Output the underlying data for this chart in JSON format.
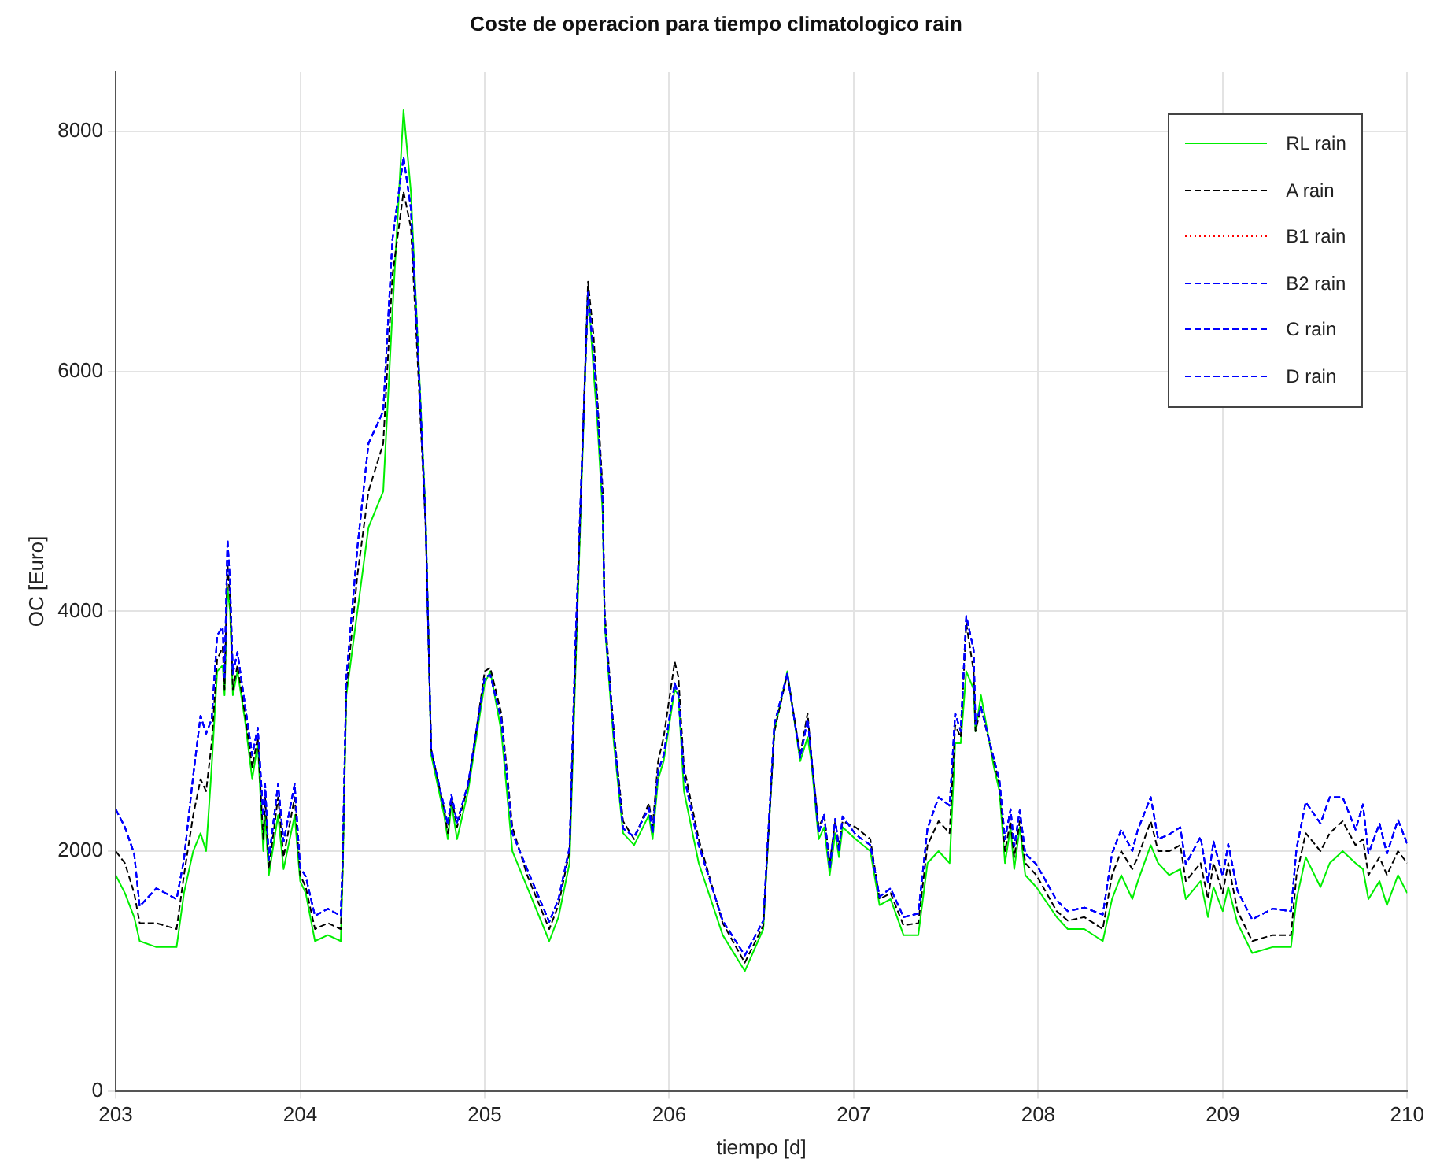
{
  "chart_data": {
    "type": "line",
    "title": "Coste de operacion para tiempo climatologico rain",
    "xlabel": "tiempo [d]",
    "ylabel": "OC [Euro]",
    "x": [
      203.0,
      203.05,
      203.1,
      203.13,
      203.22,
      203.33,
      203.37,
      203.42,
      203.46,
      203.49,
      203.52,
      203.55,
      203.58,
      203.59,
      203.606,
      203.62,
      203.635,
      203.66,
      203.7,
      203.74,
      203.77,
      203.8,
      203.81,
      203.83,
      203.88,
      203.91,
      203.97,
      204.0,
      204.03,
      204.08,
      204.15,
      204.22,
      204.23,
      204.25,
      204.31,
      204.37,
      204.45,
      204.5,
      204.56,
      204.6,
      204.63,
      204.68,
      204.71,
      204.78,
      204.8,
      204.82,
      204.85,
      204.91,
      204.94,
      205.0,
      205.03,
      205.09,
      205.15,
      205.23,
      205.35,
      205.4,
      205.46,
      205.49,
      205.56,
      205.59,
      205.61,
      205.64,
      205.65,
      205.7,
      205.75,
      205.81,
      205.89,
      205.91,
      205.94,
      205.97,
      206.03,
      206.05,
      206.08,
      206.16,
      206.29,
      206.41,
      206.51,
      206.54,
      206.57,
      206.64,
      206.71,
      206.75,
      206.77,
      206.81,
      206.84,
      206.87,
      206.9,
      206.92,
      206.94,
      207.01,
      207.09,
      207.14,
      207.2,
      207.27,
      207.35,
      207.4,
      207.46,
      207.52,
      207.55,
      207.58,
      207.61,
      207.65,
      207.66,
      207.69,
      207.76,
      207.79,
      207.82,
      207.85,
      207.87,
      207.9,
      207.93,
      207.99,
      208.1,
      208.16,
      208.25,
      208.35,
      208.4,
      208.45,
      208.51,
      208.54,
      208.61,
      208.65,
      208.71,
      208.77,
      208.8,
      208.88,
      208.92,
      208.95,
      209.0,
      209.03,
      209.08,
      209.16,
      209.27,
      209.37,
      209.4,
      209.45,
      209.53,
      209.58,
      209.65,
      209.72,
      209.76,
      209.79,
      209.85,
      209.89,
      209.95,
      210.0
    ],
    "series": [
      {
        "name": "RL rain",
        "color": "#00ee00",
        "line_style": "solid",
        "values": [
          1800,
          1650,
          1450,
          1250,
          1200,
          1200,
          1650,
          2000,
          2150,
          2000,
          2700,
          3500,
          3550,
          3300,
          4200,
          4000,
          3300,
          3500,
          3100,
          2600,
          2900,
          2000,
          2300,
          1800,
          2300,
          1850,
          2300,
          1750,
          1650,
          1250,
          1300,
          1250,
          1800,
          3300,
          4000,
          4700,
          5000,
          6500,
          8180,
          7500,
          6500,
          4800,
          2800,
          2300,
          2100,
          2400,
          2100,
          2500,
          2800,
          3400,
          3500,
          3000,
          2000,
          1700,
          1250,
          1450,
          1900,
          3400,
          6700,
          6000,
          5600,
          4800,
          3900,
          2900,
          2150,
          2050,
          2300,
          2100,
          2600,
          2750,
          3350,
          3300,
          2500,
          1900,
          1300,
          1000,
          1350,
          2200,
          3000,
          3500,
          2750,
          2950,
          2750,
          2100,
          2200,
          1800,
          2150,
          1950,
          2200,
          2100,
          2000,
          1550,
          1600,
          1300,
          1300,
          1900,
          2000,
          1900,
          2900,
          2900,
          3500,
          3350,
          3000,
          3300,
          2700,
          2500,
          1900,
          2200,
          1850,
          2200,
          1800,
          1700,
          1450,
          1350,
          1350,
          1250,
          1600,
          1800,
          1600,
          1750,
          2050,
          1900,
          1800,
          1850,
          1600,
          1750,
          1450,
          1700,
          1500,
          1700,
          1400,
          1150,
          1200,
          1200,
          1600,
          1950,
          1700,
          1900,
          2000,
          1900,
          1850,
          1600,
          1750,
          1550,
          1800,
          1650
        ]
      },
      {
        "name": "A rain",
        "color": "#000000",
        "line_style": "dashed",
        "values": [
          2000,
          1900,
          1650,
          1400,
          1400,
          1350,
          1800,
          2300,
          2600,
          2500,
          2900,
          3600,
          3700,
          3350,
          4400,
          4100,
          3350,
          3550,
          3150,
          2700,
          2950,
          2100,
          2450,
          1850,
          2450,
          1950,
          2450,
          1800,
          1700,
          1350,
          1400,
          1350,
          1850,
          3350,
          4300,
          5000,
          5400,
          6800,
          7500,
          7200,
          6300,
          4700,
          2850,
          2350,
          2150,
          2450,
          2200,
          2550,
          2850,
          3500,
          3530,
          3150,
          2200,
          1800,
          1350,
          1550,
          2000,
          3500,
          6750,
          6300,
          5800,
          5000,
          4000,
          3000,
          2250,
          2100,
          2400,
          2200,
          2750,
          2950,
          3580,
          3450,
          2700,
          2100,
          1400,
          1070,
          1380,
          2200,
          3000,
          3480,
          2800,
          3150,
          2800,
          2200,
          2300,
          1900,
          2250,
          2050,
          2250,
          2200,
          2100,
          1600,
          1650,
          1380,
          1400,
          2050,
          2250,
          2150,
          3050,
          2950,
          3900,
          3500,
          3000,
          3200,
          2750,
          2550,
          2000,
          2250,
          1950,
          2250,
          1900,
          1800,
          1500,
          1420,
          1450,
          1350,
          1800,
          2000,
          1850,
          1950,
          2250,
          2000,
          2000,
          2050,
          1750,
          1900,
          1600,
          1900,
          1650,
          1900,
          1500,
          1250,
          1300,
          1300,
          1800,
          2150,
          2000,
          2150,
          2250,
          2050,
          2100,
          1800,
          1950,
          1800,
          2000,
          1900
        ]
      },
      {
        "name": "B1 rain",
        "color": "#ff0000",
        "line_style": "dotted",
        "values": [
          null,
          null,
          null,
          null,
          null,
          null,
          null,
          null,
          null,
          null,
          null,
          null,
          null,
          null,
          null,
          null,
          null,
          null,
          null,
          null,
          null,
          null,
          null,
          null,
          null,
          null,
          null,
          null,
          null,
          null,
          null,
          null,
          null,
          null,
          null,
          null,
          null,
          null,
          null,
          null,
          null,
          null,
          null,
          null,
          null,
          null,
          null,
          null,
          null,
          null,
          null,
          null,
          null,
          null,
          null,
          null,
          null,
          null,
          null,
          null,
          null,
          null,
          null,
          null,
          null,
          null,
          null,
          null,
          null,
          null,
          null,
          null,
          null,
          null,
          null,
          null,
          null,
          null,
          null,
          null,
          null,
          null,
          null,
          null,
          null,
          null,
          null,
          null,
          null,
          null,
          null,
          null,
          null,
          null,
          null,
          null,
          null,
          null,
          null,
          null,
          null,
          null,
          null,
          null,
          null,
          null,
          null,
          null,
          null,
          null,
          null,
          null,
          null,
          null,
          null,
          null,
          null,
          null,
          null,
          null,
          null,
          null,
          null,
          null,
          null,
          null,
          null,
          null,
          null,
          null,
          null,
          null,
          null,
          null,
          null,
          null,
          null,
          null,
          null,
          null,
          null,
          null,
          null,
          null,
          null,
          null
        ]
      },
      {
        "name": "B2 rain",
        "color": "#0000ff",
        "line_style": "dashed",
        "values": [
          2350,
          2200,
          1980,
          1540,
          1690,
          1600,
          1930,
          2630,
          3130,
          2980,
          3100,
          3800,
          3870,
          3450,
          4600,
          4240,
          3480,
          3660,
          3230,
          2800,
          3030,
          2290,
          2560,
          1930,
          2560,
          2080,
          2560,
          1860,
          1790,
          1460,
          1520,
          1460,
          1930,
          3450,
          4530,
          5400,
          5670,
          7100,
          7790,
          7360,
          6450,
          4750,
          2840,
          2370,
          2220,
          2470,
          2240,
          2560,
          2860,
          3450,
          3470,
          3100,
          2150,
          1850,
          1410,
          1600,
          2030,
          3650,
          6660,
          6150,
          5720,
          4900,
          3930,
          2970,
          2190,
          2120,
          2360,
          2150,
          2670,
          2800,
          3400,
          3300,
          2630,
          2050,
          1420,
          1130,
          1420,
          2240,
          3060,
          3480,
          2780,
          3100,
          2800,
          2150,
          2310,
          1850,
          2270,
          2000,
          2290,
          2140,
          2050,
          1620,
          1690,
          1450,
          1480,
          2190,
          2450,
          2380,
          3150,
          3000,
          3960,
          3680,
          3060,
          3200,
          2770,
          2590,
          2100,
          2350,
          2040,
          2340,
          1980,
          1890,
          1590,
          1500,
          1530,
          1470,
          1980,
          2180,
          2000,
          2180,
          2450,
          2100,
          2140,
          2200,
          1890,
          2120,
          1740,
          2080,
          1790,
          2060,
          1670,
          1430,
          1520,
          1500,
          2020,
          2410,
          2230,
          2450,
          2450,
          2180,
          2390,
          1980,
          2230,
          1980,
          2260,
          2060
        ]
      },
      {
        "name": "C rain",
        "color": "#0000ff",
        "line_style": "dashed",
        "values": [
          2350,
          2200,
          1980,
          1540,
          1690,
          1600,
          1930,
          2630,
          3130,
          2980,
          3100,
          3800,
          3870,
          3450,
          4600,
          4240,
          3480,
          3660,
          3230,
          2800,
          3030,
          2290,
          2560,
          1930,
          2560,
          2080,
          2560,
          1860,
          1790,
          1460,
          1520,
          1460,
          1930,
          3450,
          4530,
          5400,
          5670,
          7100,
          7790,
          7360,
          6450,
          4750,
          2840,
          2370,
          2220,
          2470,
          2240,
          2560,
          2860,
          3450,
          3470,
          3100,
          2150,
          1850,
          1410,
          1600,
          2030,
          3650,
          6660,
          6150,
          5720,
          4900,
          3930,
          2970,
          2190,
          2120,
          2360,
          2150,
          2670,
          2800,
          3400,
          3300,
          2630,
          2050,
          1420,
          1130,
          1420,
          2240,
          3060,
          3480,
          2780,
          3100,
          2800,
          2150,
          2310,
          1850,
          2270,
          2000,
          2290,
          2140,
          2050,
          1620,
          1690,
          1450,
          1480,
          2190,
          2450,
          2380,
          3150,
          3000,
          3960,
          3680,
          3060,
          3200,
          2770,
          2590,
          2100,
          2350,
          2040,
          2340,
          1980,
          1890,
          1590,
          1500,
          1530,
          1470,
          1980,
          2180,
          2000,
          2180,
          2450,
          2100,
          2140,
          2200,
          1890,
          2120,
          1740,
          2080,
          1790,
          2060,
          1670,
          1430,
          1520,
          1500,
          2020,
          2410,
          2230,
          2450,
          2450,
          2180,
          2390,
          1980,
          2230,
          1980,
          2260,
          2060
        ]
      },
      {
        "name": "D rain",
        "color": "#0000ff",
        "line_style": "dashed",
        "values": [
          2350,
          2200,
          1980,
          1540,
          1690,
          1600,
          1930,
          2630,
          3130,
          2980,
          3100,
          3800,
          3870,
          3450,
          4600,
          4240,
          3480,
          3660,
          3230,
          2800,
          3030,
          2290,
          2560,
          1930,
          2560,
          2080,
          2560,
          1860,
          1790,
          1460,
          1520,
          1460,
          1930,
          3450,
          4530,
          5400,
          5670,
          7100,
          7790,
          7360,
          6450,
          4750,
          2840,
          2370,
          2220,
          2470,
          2240,
          2560,
          2860,
          3450,
          3470,
          3100,
          2150,
          1850,
          1410,
          1600,
          2030,
          3650,
          6660,
          6150,
          5720,
          4900,
          3930,
          2970,
          2190,
          2120,
          2360,
          2150,
          2670,
          2800,
          3400,
          3300,
          2630,
          2050,
          1420,
          1130,
          1420,
          2240,
          3060,
          3480,
          2780,
          3100,
          2800,
          2150,
          2310,
          1850,
          2270,
          2000,
          2290,
          2140,
          2050,
          1620,
          1690,
          1450,
          1480,
          2190,
          2450,
          2380,
          3150,
          3000,
          3960,
          3680,
          3060,
          3200,
          2770,
          2590,
          2100,
          2350,
          2040,
          2340,
          1980,
          1890,
          1590,
          1500,
          1530,
          1470,
          1980,
          2180,
          2000,
          2180,
          2450,
          2100,
          2140,
          2200,
          1890,
          2120,
          1740,
          2080,
          1790,
          2060,
          1670,
          1430,
          1520,
          1500,
          2020,
          2410,
          2230,
          2450,
          2450,
          2180,
          2390,
          1980,
          2230,
          1980,
          2260,
          2060
        ]
      }
    ],
    "xlim": [
      203,
      210
    ],
    "xticks": [
      203,
      204,
      205,
      206,
      207,
      208,
      209,
      210
    ],
    "ylim": [
      0,
      8500
    ],
    "yticks": [
      0,
      2000,
      4000,
      6000,
      8000
    ],
    "grid": true,
    "legend": "top right",
    "marker": "none"
  }
}
